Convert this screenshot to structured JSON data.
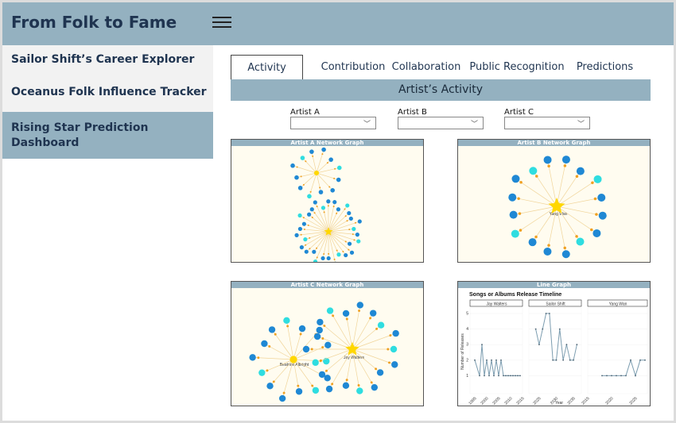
{
  "app": {
    "title": "From Folk to Fame"
  },
  "sidebar": {
    "items": [
      {
        "label": "Sailor Shift’s Career Explorer"
      },
      {
        "label": "Oceanus Folk Influence Tracker"
      },
      {
        "label": "Rising Star Prediction Dashboard"
      }
    ]
  },
  "tabs": [
    {
      "label": "Activity"
    },
    {
      "label": "Contribution"
    },
    {
      "label": "Collaboration"
    },
    {
      "label": "Public Recognition"
    },
    {
      "label": "Predictions"
    }
  ],
  "section": {
    "title": "Artist’s Activity"
  },
  "selects": [
    {
      "label": "Artist A",
      "value": ""
    },
    {
      "label": "Artist B",
      "value": ""
    },
    {
      "label": "Artist C",
      "value": ""
    }
  ],
  "panels": {
    "a": {
      "title": "Artist A Network Graph"
    },
    "b": {
      "title": "Artist B Network Graph",
      "center_label": "Yang Wan"
    },
    "c": {
      "title": "Artist C Network Graph",
      "left_label": "Beatrice Albright",
      "right_label": "Jay Walters"
    },
    "d": {
      "title": "Line Graph"
    }
  },
  "colors": {
    "header": "#94b1c0",
    "title_text": "#1f3450",
    "node_blue": "#1f88d4",
    "node_cyan": "#2fdde0",
    "star": "#ffd700",
    "line": "#7c9db0"
  },
  "chart_data": {
    "type": "line",
    "title": "Songs or Albums Release Timeline",
    "xlabel": "Year",
    "ylabel": "Number of Releases",
    "ylim": [
      0,
      5
    ],
    "series": [
      {
        "name": "Jay Walters",
        "x": [
          1995,
          1997,
          1998,
          1999,
          2000,
          2001,
          2002,
          2003,
          2004,
          2005,
          2006,
          2007,
          2008,
          2009,
          2010,
          2011,
          2012,
          2013,
          2014
        ],
        "values": [
          2,
          1,
          3,
          1,
          2,
          1,
          2,
          1,
          2,
          1,
          2,
          1,
          1,
          1,
          1,
          1,
          1,
          1,
          1
        ]
      },
      {
        "name": "Sailor Shift",
        "x": [
          2024,
          2025,
          2026,
          2027,
          2028,
          2029,
          2030,
          2031,
          2032,
          2033,
          2034,
          2035,
          2036
        ],
        "values": [
          4,
          3,
          4,
          5,
          5,
          2,
          2,
          4,
          2,
          3,
          2,
          2,
          3
        ]
      },
      {
        "name": "Yang Wan",
        "x": [
          2018,
          2019,
          2020,
          2021,
          2022,
          2023,
          2024,
          2025,
          2026,
          2027
        ],
        "values": [
          1,
          1,
          1,
          1,
          1,
          1,
          2,
          1,
          2,
          2
        ]
      }
    ]
  }
}
